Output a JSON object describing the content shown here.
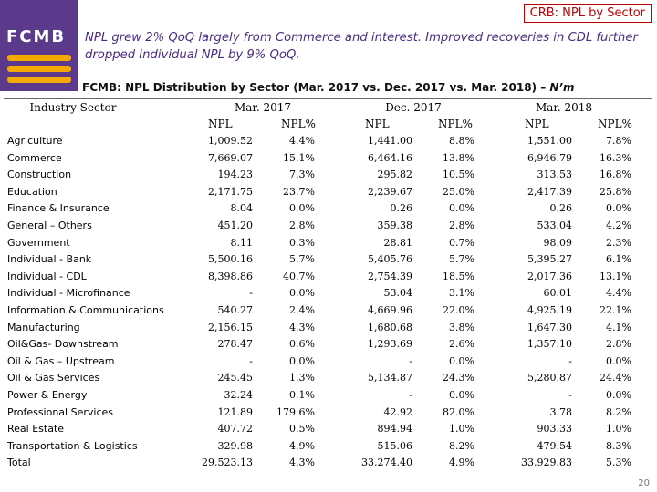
{
  "logo": {
    "text": "FCMB"
  },
  "tag": "CRB: NPL by Sector",
  "headline": "NPL grew 2% QoQ largely from Commerce and interest. Improved recoveries in CDL further dropped Individual NPL by 9% QoQ.",
  "table": {
    "title_main": "FCMB: NPL Distribution by Sector (Mar. 2017 vs. Dec. 2017 vs. Mar. 2018) – ",
    "title_unit": "N’m",
    "sector_header": "Industry Sector",
    "periods": [
      "Mar. 2017",
      "Dec. 2017",
      "Mar. 2018"
    ],
    "sub_npl": "NPL",
    "sub_pct": "NPL%",
    "sectors": [
      "Agriculture",
      "Commerce",
      "Construction",
      "Education",
      "Finance & Insurance",
      "General – Others",
      "Government",
      "Individual - Bank",
      "Individual - CDL",
      "Individual - Microfinance",
      "Information & Communications",
      "Manufacturing",
      "Oil&Gas- Downstream",
      "Oil & Gas – Upstream",
      "Oil & Gas Services",
      "Power & Energy",
      "Professional Services",
      "Real Estate",
      "Transportation & Logistics",
      "Total"
    ],
    "mar17_npl": [
      "1,009.52",
      "7,669.07",
      "194.23",
      "2,171.75",
      "8.04",
      "451.20",
      "8.11",
      "5,500.16",
      "8,398.86",
      "-",
      "540.27",
      "2,156.15",
      "278.47",
      "-",
      "245.45",
      "32.24",
      "121.89",
      "407.72",
      "329.98",
      "29,523.13"
    ],
    "mar17_pct": [
      "4.4%",
      "15.1%",
      "7.3%",
      "23.7%",
      "0.0%",
      "2.8%",
      "0.3%",
      "5.7%",
      "40.7%",
      "0.0%",
      "2.4%",
      "4.3%",
      "0.6%",
      "0.0%",
      "1.3%",
      "0.1%",
      "179.6%",
      "0.5%",
      "4.9%",
      "4.3%"
    ],
    "dec17_npl": [
      "1,441.00",
      "6,464.16",
      "295.82",
      "2,239.67",
      "0.26",
      "359.38",
      "28.81",
      "5,405.76",
      "2,754.39",
      "53.04",
      "4,669.96",
      "1,680.68",
      "1,293.69",
      "-",
      "5,134.87",
      "-",
      "42.92",
      "894.94",
      "515.06",
      "33,274.40"
    ],
    "dec17_pct": [
      "8.8%",
      "13.8%",
      "10.5%",
      "25.0%",
      "0.0%",
      "2.8%",
      "0.7%",
      "5.7%",
      "18.5%",
      "3.1%",
      "22.0%",
      "3.8%",
      "2.6%",
      "0.0%",
      "24.3%",
      "0.0%",
      "82.0%",
      "1.0%",
      "8.2%",
      "4.9%"
    ],
    "mar18_npl": [
      "1,551.00",
      "6,946.79",
      "313.53",
      "2,417.39",
      "0.26",
      "533.04",
      "98.09",
      "5,395.27",
      "2,017.36",
      "60.01",
      "4,925.19",
      "1,647.30",
      "1,357.10",
      "-",
      "5,280.87",
      "-",
      "3.78",
      "903.33",
      "479.54",
      "33,929.83"
    ],
    "mar18_pct": [
      "7.8%",
      "16.3%",
      "16.8%",
      "25.8%",
      "0.0%",
      "4.2%",
      "2.3%",
      "6.1%",
      "13.1%",
      "4.4%",
      "22.1%",
      "4.1%",
      "2.8%",
      "0.0%",
      "24.4%",
      "0.0%",
      "8.2%",
      "1.0%",
      "8.3%",
      "5.3%"
    ]
  },
  "page_number": "20"
}
